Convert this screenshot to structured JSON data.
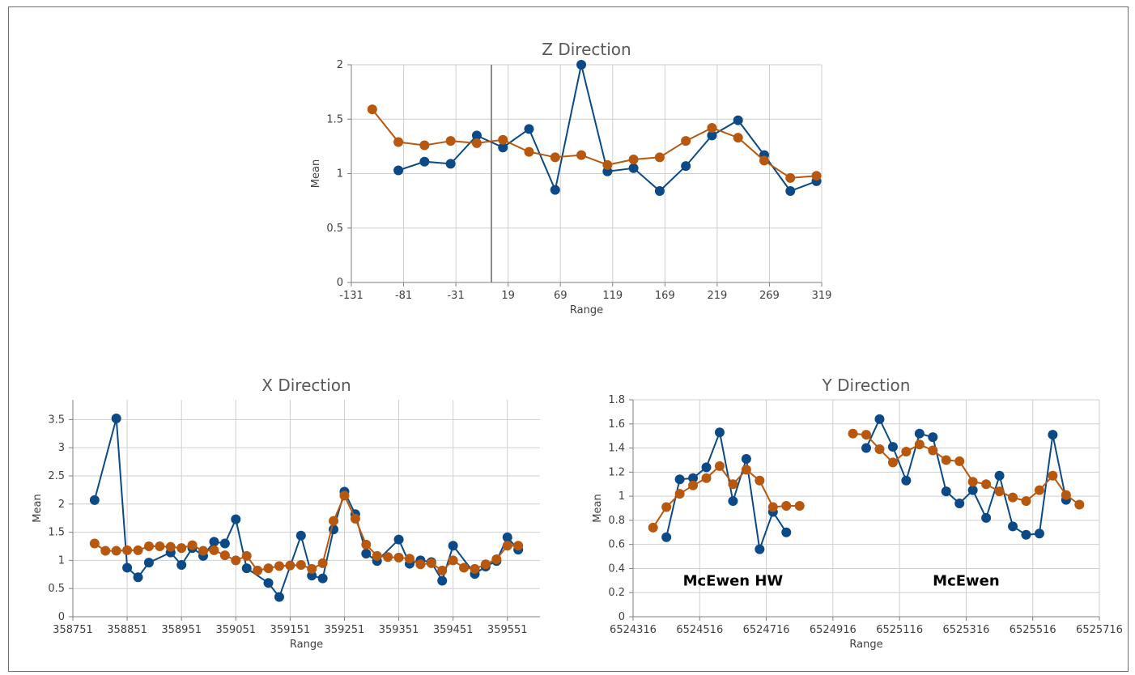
{
  "colors": {
    "series_a": "#0b4a86",
    "series_b": "#b8570e"
  },
  "chart_data": [
    {
      "type": "line",
      "title": "Z Direction",
      "xlabel": "Range",
      "ylabel": "Mean",
      "xlim": [
        -131,
        319
      ],
      "ylim": [
        0,
        2
      ],
      "xticks": [
        -131,
        -81,
        -31,
        19,
        69,
        119,
        169,
        219,
        269,
        319
      ],
      "yticks": [
        0,
        0.5,
        1,
        1.5,
        2
      ],
      "yticklabels": [
        "0",
        "0.5",
        "1",
        "1.5",
        "2"
      ],
      "grid": true,
      "marker_line": 3,
      "series": [
        {
          "x": [
            -86,
            -61,
            -36,
            -11,
            14,
            39,
            64,
            89,
            114,
            139,
            164,
            189,
            214,
            239,
            264,
            289,
            314
          ],
          "y": [
            1.03,
            1.11,
            1.09,
            1.35,
            1.24,
            1.41,
            0.85,
            2.0,
            1.02,
            1.05,
            0.84,
            1.07,
            1.35,
            1.49,
            1.17,
            0.84,
            0.93
          ]
        },
        {
          "x": [
            -111,
            -86,
            -61,
            -36,
            -11,
            14,
            39,
            64,
            89,
            114,
            139,
            164,
            189,
            214,
            239,
            264,
            289,
            314
          ],
          "y": [
            1.59,
            1.29,
            1.26,
            1.3,
            1.28,
            1.31,
            1.2,
            1.15,
            1.17,
            1.08,
            1.13,
            1.15,
            1.3,
            1.42,
            1.33,
            1.12,
            0.96,
            0.98
          ]
        }
      ]
    },
    {
      "type": "line",
      "title": "X Direction",
      "xlabel": "Range",
      "ylabel": "Mean",
      "xlim": [
        358751,
        359611
      ],
      "ylim": [
        0,
        3.85
      ],
      "xticks": [
        358751,
        358851,
        358951,
        359051,
        359151,
        359251,
        359351,
        359451,
        359551
      ],
      "yticks": [
        0,
        0.5,
        1,
        1.5,
        2,
        2.5,
        3,
        3.5
      ],
      "yticklabels": [
        "0",
        "0.5",
        "1",
        "1.5",
        "2",
        "2.5",
        "3",
        "3.5"
      ],
      "grid": true,
      "series": [
        {
          "x": [
            358791,
            358831,
            358851,
            358871,
            358891,
            358931,
            358951,
            358971,
            358991,
            359011,
            359031,
            359051,
            359071,
            359111,
            359131,
            359171,
            359191,
            359211,
            359231,
            359251,
            359271,
            359291,
            359311,
            359351,
            359371,
            359391,
            359411,
            359431,
            359451,
            359491,
            359511,
            359531,
            359551,
            359571
          ],
          "y": [
            2.07,
            3.52,
            0.87,
            0.7,
            0.96,
            1.14,
            0.92,
            1.22,
            1.08,
            1.33,
            1.3,
            1.73,
            0.86,
            0.6,
            0.35,
            1.44,
            0.73,
            0.68,
            1.55,
            2.22,
            1.82,
            1.12,
            0.99,
            1.37,
            0.94,
            1.0,
            0.97,
            0.64,
            1.26,
            0.76,
            0.89,
            0.99,
            1.41,
            1.19
          ]
        },
        {
          "x": [
            358791,
            358811,
            358831,
            358851,
            358871,
            358891,
            358911,
            358931,
            358951,
            358971,
            358991,
            359011,
            359031,
            359051,
            359071,
            359091,
            359111,
            359131,
            359151,
            359171,
            359191,
            359211,
            359231,
            359251,
            359271,
            359291,
            359311,
            359331,
            359351,
            359371,
            359391,
            359411,
            359431,
            359451,
            359471,
            359491,
            359511,
            359531,
            359551,
            359571
          ],
          "y": [
            1.3,
            1.17,
            1.17,
            1.18,
            1.18,
            1.25,
            1.25,
            1.24,
            1.22,
            1.27,
            1.17,
            1.18,
            1.09,
            1.0,
            1.08,
            0.82,
            0.86,
            0.9,
            0.91,
            0.92,
            0.85,
            0.95,
            1.7,
            2.15,
            1.74,
            1.28,
            1.08,
            1.06,
            1.05,
            1.03,
            0.93,
            0.95,
            0.82,
            1.0,
            0.87,
            0.85,
            0.93,
            1.02,
            1.26,
            1.26
          ]
        }
      ]
    },
    {
      "type": "line",
      "title": "Y Direction",
      "xlabel": "Range",
      "ylabel": "Mean",
      "xlim": [
        6524316,
        6525716
      ],
      "ylim": [
        0,
        1.8
      ],
      "xticks": [
        6524316,
        6524516,
        6524716,
        6524916,
        6525116,
        6525316,
        6525516,
        6525716
      ],
      "yticks": [
        0,
        0.2,
        0.4,
        0.6,
        0.8,
        1,
        1.2,
        1.4,
        1.6,
        1.8
      ],
      "yticklabels": [
        "0",
        "0.2",
        "0.4",
        "0.6",
        "0.8",
        "1",
        "1.2",
        "1.4",
        "1.6",
        "1.8"
      ],
      "grid": true,
      "annotations": [
        {
          "text": "McEwen HW",
          "x": 6524616,
          "y": 0.26
        },
        {
          "text": "McEwen",
          "x": 6525316,
          "y": 0.26
        }
      ],
      "series": [
        {
          "x": [
            6524416,
            6524456,
            6524496,
            6524536,
            6524576,
            6524616,
            6524656,
            6524696,
            6524736,
            6524776,
            6524816
          ],
          "y": [
            0.66,
            1.14,
            1.15,
            1.24,
            1.53,
            0.96,
            1.31,
            0.56,
            0.87,
            0.7,
            null
          ]
        },
        {
          "x": [
            6524376,
            6524416,
            6524456,
            6524496,
            6524536,
            6524576,
            6524616,
            6524656,
            6524696,
            6524736,
            6524776,
            6524816
          ],
          "y": [
            0.74,
            0.91,
            1.02,
            1.09,
            1.15,
            1.25,
            1.1,
            1.22,
            1.13,
            0.91,
            0.92,
            0.92
          ]
        },
        {
          "x": [
            6525016,
            6525056,
            6525096,
            6525136,
            6525176,
            6525216,
            6525256,
            6525296,
            6525336,
            6525376,
            6525416,
            6525456,
            6525496,
            6525536,
            6525576,
            6525616,
            6525656
          ],
          "y": [
            1.4,
            1.64,
            1.41,
            1.13,
            1.52,
            1.49,
            1.04,
            0.94,
            1.05,
            0.82,
            1.17,
            0.75,
            0.68,
            0.69,
            1.51,
            0.97,
            null
          ]
        },
        {
          "x": [
            6524976,
            6525016,
            6525056,
            6525096,
            6525136,
            6525176,
            6525216,
            6525256,
            6525296,
            6525336,
            6525376,
            6525416,
            6525456,
            6525496,
            6525536,
            6525576,
            6525616,
            6525656
          ],
          "y": [
            1.52,
            1.51,
            1.39,
            1.28,
            1.37,
            1.43,
            1.38,
            1.3,
            1.29,
            1.12,
            1.1,
            1.04,
            0.99,
            0.96,
            1.05,
            1.17,
            1.01,
            0.93
          ]
        }
      ]
    }
  ]
}
